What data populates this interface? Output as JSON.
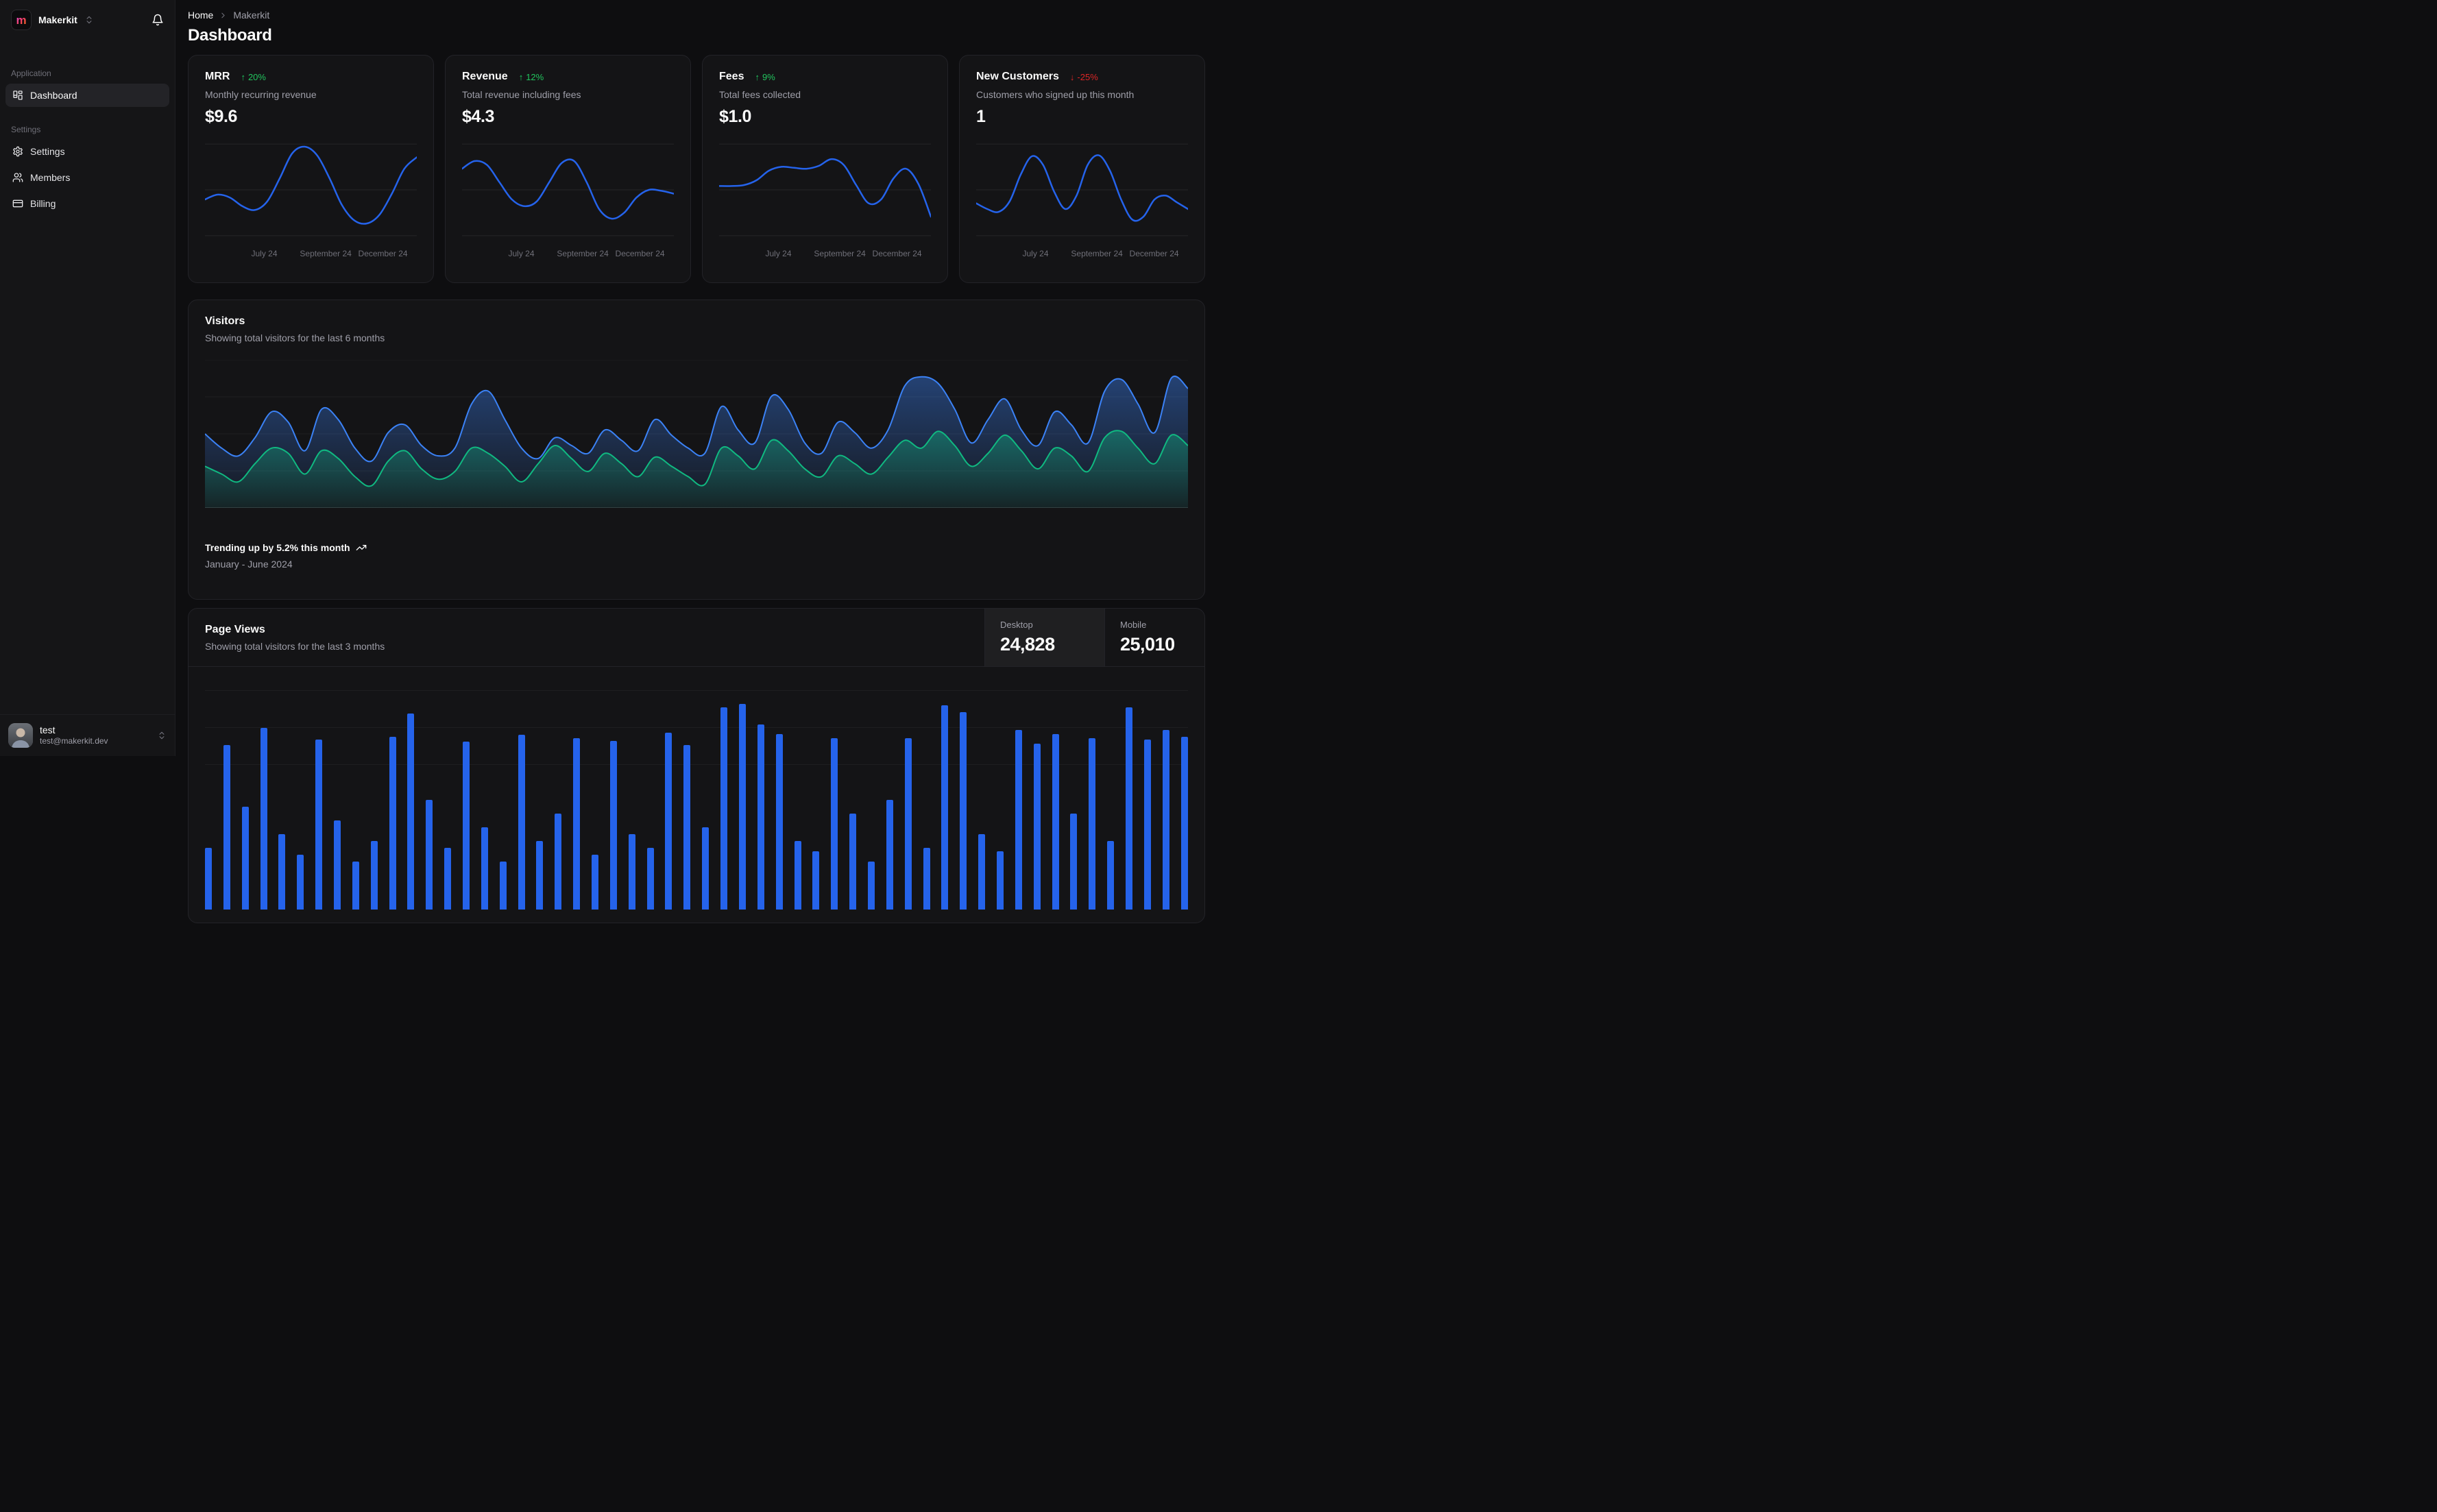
{
  "sidebar": {
    "team": {
      "name": "Makerkit",
      "logo_letter": "m"
    },
    "sections": [
      {
        "label": "Application",
        "items": [
          {
            "label": "Dashboard",
            "icon": "layout-dashboard-icon",
            "active": true
          }
        ]
      },
      {
        "label": "Settings",
        "items": [
          {
            "label": "Settings",
            "icon": "gear-icon",
            "active": false
          },
          {
            "label": "Members",
            "icon": "users-icon",
            "active": false
          },
          {
            "label": "Billing",
            "icon": "credit-card-icon",
            "active": false
          }
        ]
      }
    ],
    "user": {
      "name": "test",
      "email": "test@makerkit.dev"
    }
  },
  "header": {
    "breadcrumb": {
      "home": "Home",
      "current": "Makerkit"
    },
    "title": "Dashboard"
  },
  "stat_cards": [
    {
      "title": "MRR",
      "delta_arrow": "↑",
      "delta": "20%",
      "direction": "up",
      "subtitle": "Monthly recurring revenue",
      "value": "$9.6"
    },
    {
      "title": "Revenue",
      "delta_arrow": "↑",
      "delta": "12%",
      "direction": "up",
      "subtitle": "Total revenue including fees",
      "value": "$4.3"
    },
    {
      "title": "Fees",
      "delta_arrow": "↑",
      "delta": "9%",
      "direction": "up",
      "subtitle": "Total fees collected",
      "value": "$1.0"
    },
    {
      "title": "New Customers",
      "delta_arrow": "↓",
      "delta": "-25%",
      "direction": "down",
      "subtitle": "Customers who signed up this month",
      "value": "1"
    }
  ],
  "visitors": {
    "title": "Visitors",
    "subtitle": "Showing total visitors for the last 6 months",
    "footer_primary": "Trending up by 5.2% this month",
    "footer_secondary": "January - June 2024"
  },
  "page_views": {
    "title": "Page Views",
    "subtitle": "Showing total visitors for the last 3 months",
    "toggles": [
      {
        "label": "Desktop",
        "value": "24,828",
        "active": true
      },
      {
        "label": "Mobile",
        "value": "25,010",
        "active": false
      }
    ]
  },
  "colors": {
    "accent_blue": "#2563eb",
    "area_blue_line": "#3b82f6",
    "area_green_line": "#10b981",
    "badge_up_green": "#22c55e",
    "badge_down_red": "#dc2626",
    "bar_blue": "#2563eb"
  },
  "chart_data": [
    {
      "type": "line",
      "name": "spark-mrr",
      "title": "MRR sparkline",
      "color": "#2563eb",
      "x_ticks": [
        "July 24",
        "September 24",
        "December 24"
      ],
      "ylim": [
        0,
        100
      ],
      "values": [
        40,
        45,
        42,
        33,
        29,
        38,
        62,
        88,
        95,
        86,
        62,
        34,
        18,
        15,
        24,
        46,
        72,
        84
      ]
    },
    {
      "type": "line",
      "name": "spark-revenue",
      "title": "Revenue sparkline",
      "color": "#2563eb",
      "x_ticks": [
        "July 24",
        "September 24",
        "December 24"
      ],
      "ylim": [
        0,
        100
      ],
      "values": [
        72,
        80,
        76,
        58,
        40,
        33,
        38,
        58,
        78,
        80,
        58,
        30,
        20,
        26,
        42,
        50,
        49,
        46
      ]
    },
    {
      "type": "line",
      "name": "spark-fees",
      "title": "Fees sparkline",
      "color": "#2563eb",
      "x_ticks": [
        "July 24",
        "September 24",
        "December 24"
      ],
      "ylim": [
        0,
        100
      ],
      "values": [
        54,
        54,
        55,
        60,
        70,
        74,
        73,
        72,
        75,
        82,
        76,
        55,
        36,
        40,
        62,
        72,
        56,
        22
      ]
    },
    {
      "type": "line",
      "name": "spark-customers",
      "title": "New Customers sparkline",
      "color": "#2563eb",
      "x_ticks": [
        "July 24",
        "September 24",
        "December 24"
      ],
      "ylim": [
        0,
        100
      ],
      "values": [
        36,
        30,
        27,
        38,
        66,
        85,
        76,
        48,
        30,
        44,
        76,
        86,
        70,
        40,
        19,
        22,
        40,
        44,
        37,
        30
      ]
    },
    {
      "type": "area",
      "name": "visitors-area",
      "title": "Visitors",
      "x_range_label": "January - June 2024",
      "grid": true,
      "legend": "none",
      "ylim": [
        0,
        110
      ],
      "series": [
        {
          "name": "desktop",
          "color": "#3b82f6",
          "values": [
            55,
            44,
            38,
            52,
            72,
            64,
            42,
            74,
            66,
            44,
            34,
            56,
            62,
            46,
            38,
            44,
            78,
            88,
            66,
            44,
            36,
            52,
            46,
            40,
            58,
            50,
            42,
            66,
            54,
            44,
            40,
            76,
            58,
            48,
            84,
            74,
            48,
            40,
            64,
            56,
            44,
            58,
            92,
            99,
            94,
            74,
            48,
            66,
            82,
            58,
            46,
            72,
            62,
            48,
            88,
            97,
            78,
            56,
            98,
            90
          ]
        },
        {
          "name": "mobile",
          "color": "#10b981",
          "values": [
            30,
            24,
            18,
            32,
            44,
            40,
            24,
            42,
            36,
            22,
            15,
            34,
            42,
            28,
            20,
            26,
            44,
            40,
            30,
            18,
            32,
            46,
            36,
            26,
            40,
            32,
            22,
            37,
            30,
            22,
            16,
            44,
            38,
            28,
            50,
            42,
            28,
            22,
            38,
            32,
            24,
            37,
            50,
            44,
            57,
            46,
            30,
            40,
            54,
            42,
            28,
            44,
            38,
            26,
            52,
            57,
            44,
            32,
            54,
            46
          ]
        }
      ]
    },
    {
      "type": "bar",
      "name": "page-views-bars",
      "title": "Page Views (partially visible)",
      "color": "#2563eb",
      "ylim": [
        0,
        340
      ],
      "values": [
        90,
        240,
        150,
        265,
        110,
        80,
        248,
        130,
        70,
        100,
        252,
        286,
        160,
        90,
        245,
        120,
        70,
        255,
        100,
        140,
        250,
        80,
        246,
        110,
        90,
        258,
        240,
        120,
        295,
        300,
        270,
        256,
        100,
        85,
        250,
        140,
        70,
        160,
        250,
        90,
        298,
        288,
        110,
        85,
        262,
        242,
        256,
        140,
        250,
        100,
        295,
        248,
        262,
        252
      ]
    }
  ]
}
